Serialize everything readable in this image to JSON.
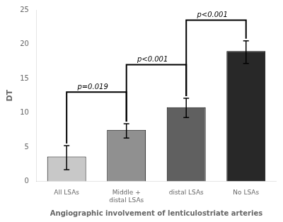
{
  "chart_data": {
    "type": "bar",
    "categories": [
      "All LSAs",
      "Middle + distal LSAs",
      "distal LSAs",
      "No LSAs"
    ],
    "values": [
      3.6,
      7.5,
      10.8,
      19.0
    ],
    "errors_upper": [
      1.6,
      0.9,
      1.3,
      1.5
    ],
    "errors_lower": [
      1.9,
      1.2,
      1.5,
      1.8
    ],
    "colors": [
      "#c8c8c8",
      "#909090",
      "#606060",
      "#282828"
    ],
    "xlabel": "Angiographic involvement of lenticulostriate arteries",
    "ylabel": "DT",
    "ylim": [
      0,
      25
    ],
    "yticks": [
      0,
      5,
      10,
      15,
      20,
      25
    ],
    "grid": false,
    "brackets": [
      {
        "from": "All LSAs",
        "to": "Middle + distal LSAs",
        "y": 13.0,
        "label": "p=0.019"
      },
      {
        "from": "Middle + distal LSAs",
        "to": "distal LSAs",
        "y": 17.0,
        "label": "p<0.001"
      },
      {
        "from": "distal LSAs",
        "to": "No LSAs",
        "y": 23.5,
        "label": "p<0.001"
      }
    ]
  }
}
